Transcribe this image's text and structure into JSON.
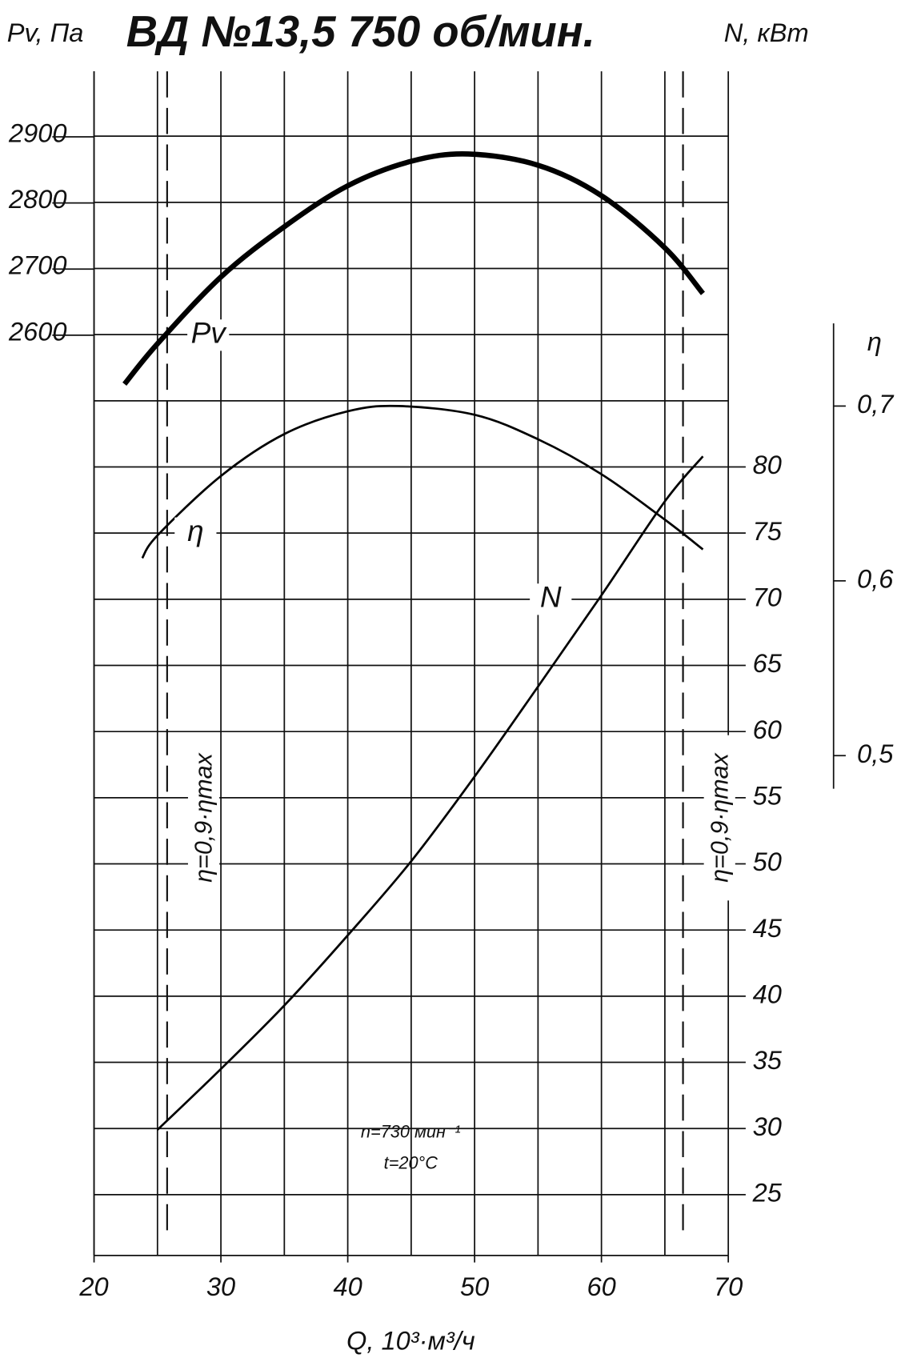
{
  "chart_data": {
    "type": "line",
    "title": "ВД №13,5 750 об/мин.",
    "y_label": "Pv, Па",
    "y2_label": "N, кВт",
    "y3_label": "η",
    "x_label": "Q, 10³·м³/ч",
    "notes": [
      "n=730 мин⁻¹",
      "t=20°C"
    ],
    "xlim": [
      20,
      70
    ],
    "xticks": [
      20,
      30,
      40,
      50,
      60,
      70
    ],
    "xgrid": [
      20,
      25,
      30,
      35,
      40,
      45,
      50,
      55,
      60,
      65,
      70
    ],
    "ylim": [
      1208,
      2999
    ],
    "yticks": [
      2600,
      2700,
      2800,
      2900
    ],
    "y2lim": [
      20.4,
      109.9
    ],
    "y2ticks": [
      25,
      30,
      35,
      40,
      45,
      50,
      55,
      60,
      65,
      70,
      75,
      80
    ],
    "y2grid": [
      25,
      30,
      35,
      40,
      45,
      50,
      55,
      60,
      65,
      70,
      75,
      80,
      85,
      90,
      95,
      100,
      105
    ],
    "y3lim": [
      0.214,
      0.8915
    ],
    "y3ticks": [
      {
        "value": 0.5,
        "label": "0,5"
      },
      {
        "value": 0.6,
        "label": "0,6"
      },
      {
        "value": 0.7,
        "label": "0,7"
      }
    ],
    "boundaries": {
      "label": "η=0,9·ηmax",
      "x": [
        25.76,
        66.43
      ]
    },
    "series": [
      {
        "name": "Pv",
        "axis": "y",
        "color": "#000000",
        "x": [
          22.4,
          25,
          30,
          35,
          40,
          45,
          49.5,
          55,
          60,
          65,
          68
        ],
        "values": [
          2526,
          2587,
          2688,
          2764,
          2826,
          2863,
          2874,
          2857,
          2811,
          2732,
          2663
        ],
        "label_x": 29
      },
      {
        "name": "η",
        "axis": "y3",
        "color": "#000000",
        "x": [
          23.8,
          25,
          30,
          35,
          40,
          44,
          50,
          55,
          60,
          65,
          68
        ],
        "values": [
          0.613,
          0.626,
          0.66,
          0.684,
          0.697,
          0.7,
          0.695,
          0.681,
          0.661,
          0.635,
          0.618
        ],
        "label_x": 28
      },
      {
        "name": "N",
        "axis": "y2",
        "color": "#000000",
        "x": [
          25,
          30,
          35,
          40,
          45,
          50,
          55,
          60,
          65,
          68
        ],
        "values": [
          29.9,
          34.5,
          39.3,
          44.6,
          50.2,
          56.6,
          63.4,
          70.3,
          77.4,
          80.8
        ],
        "label_x": 56
      }
    ]
  }
}
